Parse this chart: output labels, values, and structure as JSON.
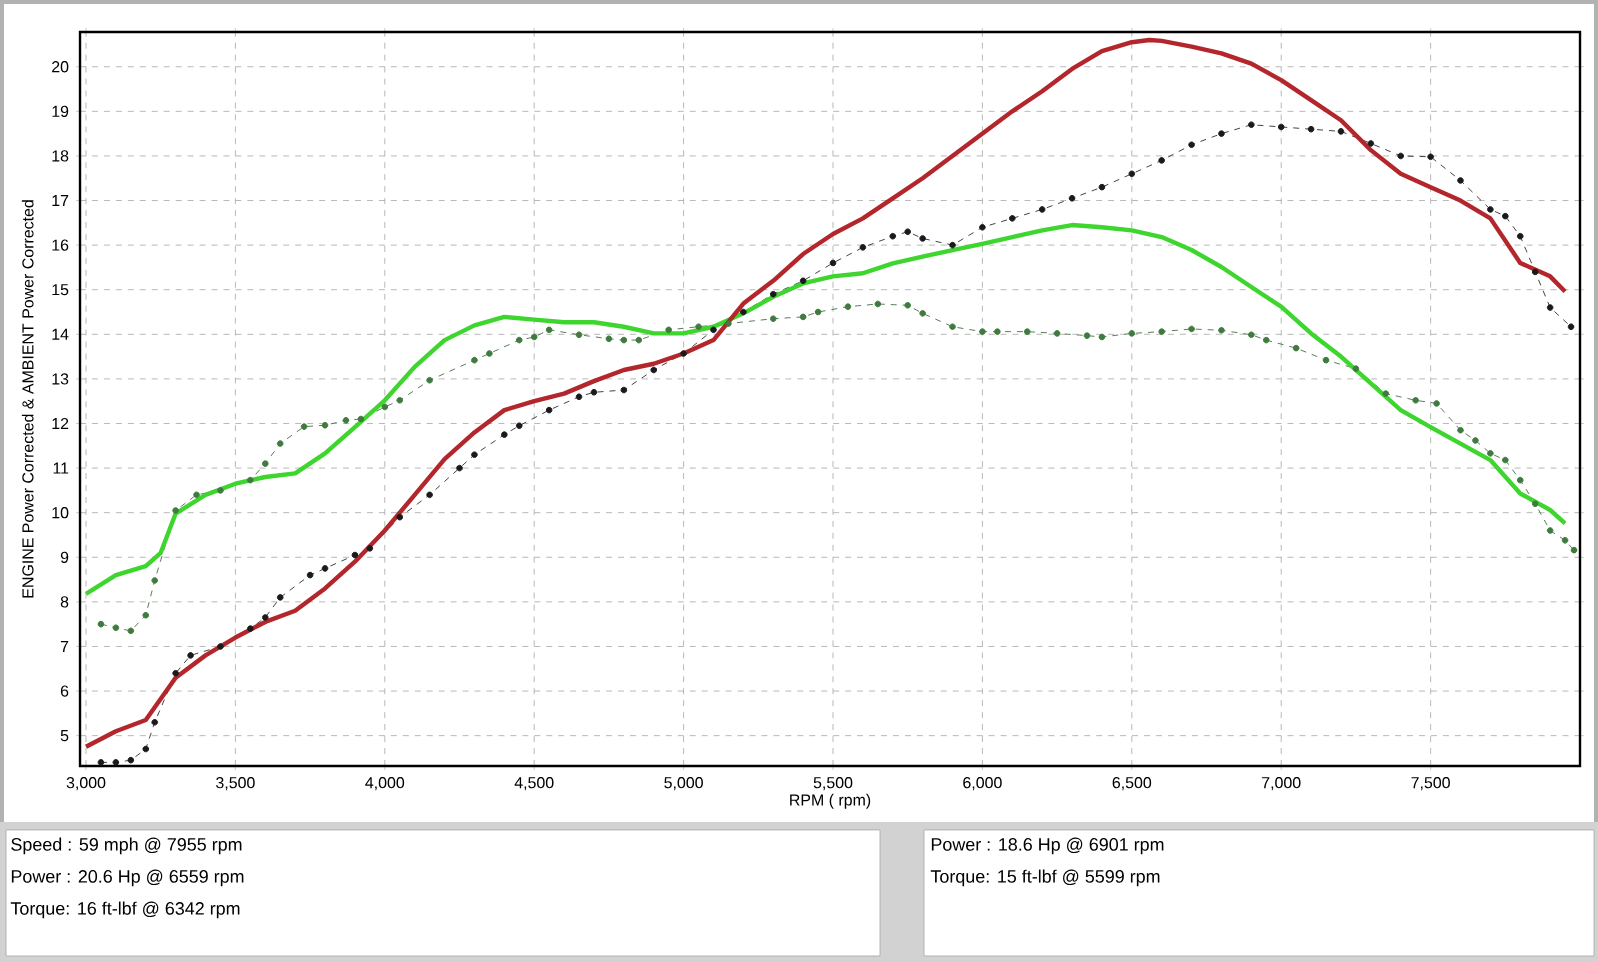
{
  "chart_data": {
    "type": "line",
    "xlabel": "RPM ( rpm)",
    "ylabel": "ENGINE Power Corrected & AMBIENT Power Corrected",
    "xlim": [
      2980,
      8000
    ],
    "ylim": [
      4.32,
      20.78
    ],
    "xticks": [
      {
        "value": 3000,
        "label": "3,000"
      },
      {
        "value": 3500,
        "label": "3,500"
      },
      {
        "value": 4000,
        "label": "4,000"
      },
      {
        "value": 4500,
        "label": "4,500"
      },
      {
        "value": 5000,
        "label": "5,000"
      },
      {
        "value": 5500,
        "label": "5,500"
      },
      {
        "value": 6000,
        "label": "6,000"
      },
      {
        "value": 6500,
        "label": "6,500"
      },
      {
        "value": 7000,
        "label": "7,000"
      },
      {
        "value": 7500,
        "label": "7,500"
      }
    ],
    "yticks": [
      5,
      6,
      7,
      8,
      9,
      10,
      11,
      12,
      13,
      14,
      15,
      16,
      17,
      18,
      19,
      20
    ],
    "grid": true,
    "series": [
      {
        "color": "#3f7a3f",
        "marker": "circle",
        "line_style": "dashed",
        "x": [
          3050,
          3100,
          3150,
          3200,
          3230,
          3300,
          3370,
          3450,
          3550,
          3600,
          3650,
          3730,
          3800,
          3870,
          3920,
          4000,
          4050,
          4150,
          4300,
          4350,
          4450,
          4500,
          4550,
          4650,
          4750,
          4800,
          4850,
          4950,
          5050,
          5150,
          5300,
          5400,
          5450,
          5550,
          5650,
          5750,
          5800,
          5900,
          6000,
          6050,
          6150,
          6250,
          6350,
          6400,
          6500,
          6600,
          6700,
          6800,
          6900,
          6950,
          7050,
          7150,
          7250,
          7350,
          7450,
          7520,
          7600,
          7650,
          7700,
          7750,
          7800,
          7850,
          7900,
          7950,
          7980
        ],
        "values": [
          7.5,
          7.42,
          7.35,
          7.7,
          8.48,
          10.05,
          10.4,
          10.5,
          10.73,
          11.1,
          11.55,
          11.93,
          11.96,
          12.07,
          12.1,
          12.37,
          12.52,
          12.97,
          13.42,
          13.57,
          13.87,
          13.94,
          14.1,
          13.99,
          13.9,
          13.87,
          13.87,
          14.1,
          14.17,
          14.24,
          14.35,
          14.39,
          14.5,
          14.62,
          14.68,
          14.65,
          14.47,
          14.17,
          14.06,
          14.06,
          14.06,
          14.02,
          13.97,
          13.94,
          14.02,
          14.06,
          14.12,
          14.09,
          13.99,
          13.87,
          13.69,
          13.42,
          13.23,
          12.67,
          12.52,
          12.45,
          11.85,
          11.62,
          11.33,
          11.18,
          10.73,
          10.2,
          9.6,
          9.38,
          9.16
        ]
      },
      {
        "color": "#1a1a1a",
        "marker": "circle",
        "line_style": "dashed",
        "x": [
          3050,
          3100,
          3150,
          3200,
          3230,
          3300,
          3350,
          3450,
          3550,
          3600,
          3650,
          3750,
          3800,
          3900,
          3950,
          4050,
          4150,
          4250,
          4300,
          4400,
          4450,
          4550,
          4650,
          4700,
          4800,
          4900,
          5000,
          5100,
          5200,
          5300,
          5400,
          5500,
          5600,
          5700,
          5750,
          5800,
          5900,
          6000,
          6100,
          6200,
          6300,
          6400,
          6500,
          6600,
          6700,
          6800,
          6900,
          7000,
          7100,
          7200,
          7300,
          7400,
          7500,
          7600,
          7700,
          7750,
          7800,
          7850,
          7900,
          7970
        ],
        "values": [
          4.4,
          4.4,
          4.45,
          4.7,
          5.3,
          6.4,
          6.8,
          7.0,
          7.4,
          7.65,
          8.1,
          8.6,
          8.75,
          9.05,
          9.2,
          9.9,
          10.4,
          11.0,
          11.3,
          11.75,
          11.95,
          12.3,
          12.6,
          12.7,
          12.75,
          13.2,
          13.57,
          14.1,
          14.5,
          14.9,
          15.2,
          15.6,
          15.95,
          16.2,
          16.3,
          16.15,
          16.0,
          16.4,
          16.6,
          16.8,
          17.05,
          17.3,
          17.6,
          17.9,
          18.25,
          18.5,
          18.7,
          18.65,
          18.6,
          18.55,
          18.28,
          18.0,
          17.98,
          17.45,
          16.8,
          16.65,
          16.2,
          15.4,
          14.6,
          14.17
        ]
      },
      {
        "color": "#3ed62e",
        "marker": "none",
        "line_style": "solid",
        "x": [
          3000,
          3100,
          3200,
          3250,
          3300,
          3400,
          3500,
          3600,
          3700,
          3800,
          3900,
          4000,
          4100,
          4200,
          4300,
          4400,
          4500,
          4600,
          4700,
          4800,
          4900,
          5000,
          5100,
          5200,
          5300,
          5400,
          5500,
          5600,
          5700,
          5800,
          5900,
          6000,
          6100,
          6200,
          6300,
          6400,
          6500,
          6600,
          6700,
          6800,
          6900,
          7000,
          7100,
          7200,
          7300,
          7400,
          7500,
          7600,
          7700,
          7800,
          7900,
          7950
        ],
        "values": [
          8.18,
          8.6,
          8.8,
          9.1,
          9.98,
          10.4,
          10.65,
          10.8,
          10.88,
          11.33,
          11.92,
          12.52,
          13.27,
          13.87,
          14.2,
          14.39,
          14.33,
          14.27,
          14.27,
          14.17,
          14.02,
          14.02,
          14.17,
          14.47,
          14.84,
          15.14,
          15.3,
          15.37,
          15.59,
          15.74,
          15.89,
          16.03,
          16.18,
          16.33,
          16.45,
          16.4,
          16.33,
          16.18,
          15.89,
          15.51,
          15.06,
          14.62,
          14.02,
          13.5,
          12.9,
          12.3,
          11.92,
          11.55,
          11.18,
          10.43,
          10.06,
          9.76
        ]
      },
      {
        "color": "#b3262b",
        "marker": "none",
        "line_style": "solid",
        "x": [
          3000,
          3100,
          3200,
          3300,
          3400,
          3500,
          3600,
          3700,
          3800,
          3900,
          4000,
          4100,
          4200,
          4300,
          4400,
          4500,
          4600,
          4700,
          4800,
          4900,
          5000,
          5100,
          5200,
          5300,
          5400,
          5500,
          5600,
          5700,
          5800,
          5900,
          6000,
          6100,
          6200,
          6300,
          6400,
          6500,
          6559,
          6600,
          6700,
          6800,
          6900,
          7000,
          7100,
          7200,
          7300,
          7400,
          7500,
          7600,
          7700,
          7800,
          7900,
          7950
        ],
        "values": [
          4.75,
          5.1,
          5.35,
          6.3,
          6.8,
          7.2,
          7.55,
          7.8,
          8.3,
          8.9,
          9.6,
          10.4,
          11.2,
          11.8,
          12.3,
          12.5,
          12.67,
          12.95,
          13.2,
          13.34,
          13.57,
          13.87,
          14.69,
          15.2,
          15.8,
          16.25,
          16.6,
          17.05,
          17.5,
          18.0,
          18.5,
          19.0,
          19.45,
          19.95,
          20.35,
          20.55,
          20.6,
          20.58,
          20.45,
          20.3,
          20.07,
          19.7,
          19.25,
          18.8,
          18.13,
          17.6,
          17.3,
          17.0,
          16.6,
          15.6,
          15.3,
          14.96
        ]
      }
    ],
    "annotations": [
      "Speed : 59 mph @ 7955 rpm",
      "Power : 20.6 Hp @ 6559 rpm",
      "Torque: 16 ft-lbf @ 6342 rpm",
      "Power : 18.6 Hp @ 6901 rpm",
      "Torque: 15 ft-lbf @ 5599 rpm"
    ]
  }
}
